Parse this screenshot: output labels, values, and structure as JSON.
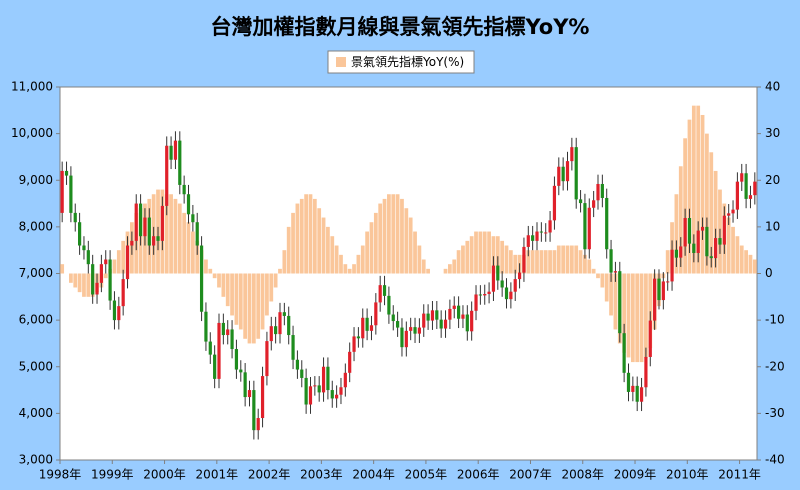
{
  "chart_data": {
    "type": "candlestick",
    "title": "台灣加權指數月線與景氣領先指標YoY%",
    "title_color": "#0000cc",
    "categories": [
      "1998年",
      null,
      null,
      null,
      null,
      null,
      null,
      null,
      null,
      null,
      null,
      null,
      "1999年",
      null,
      null,
      null,
      null,
      null,
      null,
      null,
      null,
      null,
      null,
      null,
      "2000年",
      null,
      null,
      null,
      null,
      null,
      null,
      null,
      null,
      null,
      null,
      null,
      "2001年",
      null,
      null,
      null,
      null,
      null,
      null,
      null,
      null,
      null,
      null,
      null,
      "2002年",
      null,
      null,
      null,
      null,
      null,
      null,
      null,
      null,
      null,
      null,
      null,
      "2003年",
      null,
      null,
      null,
      null,
      null,
      null,
      null,
      null,
      null,
      null,
      null,
      "2004年",
      null,
      null,
      null,
      null,
      null,
      null,
      null,
      null,
      null,
      null,
      null,
      "2005年",
      null,
      null,
      null,
      null,
      null,
      null,
      null,
      null,
      null,
      null,
      null,
      "2006年",
      null,
      null,
      null,
      null,
      null,
      null,
      null,
      null,
      null,
      null,
      null,
      "2007年",
      null,
      null,
      null,
      null,
      null,
      null,
      null,
      null,
      null,
      null,
      null,
      "2008年",
      null,
      null,
      null,
      null,
      null,
      null,
      null,
      null,
      null,
      null,
      null,
      "2009年",
      null,
      null,
      null,
      null,
      null,
      null,
      null,
      null,
      null,
      null,
      null,
      "2010年",
      null,
      null,
      null,
      null,
      null,
      null,
      null,
      null,
      null,
      null,
      null,
      "2011年",
      null,
      null,
      null
    ],
    "series": [
      {
        "type": "candlestick",
        "up_color": "#e0202a",
        "down_color": "#1e8c1e",
        "open": [
          8300,
          9200,
          9100,
          8300,
          8100,
          7600,
          7500,
          7200,
          6550,
          6800,
          7200,
          7300,
          6420,
          6000,
          6300,
          6880,
          7600,
          7700,
          8500,
          7800,
          8200,
          7600,
          7800,
          7700,
          8450,
          9740,
          9440,
          9850,
          8900,
          8700,
          8270,
          8100,
          7600,
          6180,
          5540,
          5260,
          4740,
          5940,
          5680,
          5800,
          5380,
          4940,
          4880,
          4350,
          4500,
          3640,
          3900,
          4800,
          5550,
          5870,
          5700,
          6170,
          6090,
          5680,
          5150,
          4940,
          4760,
          4190,
          4580,
          4600,
          4450,
          5000,
          4500,
          4320,
          4400,
          4560,
          4870,
          5320,
          5650,
          5610,
          6050,
          5770,
          5890,
          6380,
          6750,
          6520,
          6120,
          5980,
          5840,
          5420,
          5770,
          5850,
          5710,
          5840,
          6140,
          5990,
          6210,
          6010,
          5820,
          6010,
          6240,
          6310,
          6030,
          6120,
          5760,
          6200,
          6550,
          6530,
          6560,
          6610,
          7170,
          6850,
          6700,
          6450,
          6610,
          6880,
          7020,
          7570,
          7820,
          7700,
          7900,
          7880,
          7880,
          8140,
          8880,
          9290,
          8980,
          9410,
          9710,
          8590,
          8510,
          7520,
          8410,
          8570,
          8920,
          8620,
          7520,
          7020,
          7050,
          5720,
          4870,
          4460,
          4590,
          4250,
          4560,
          5210,
          5990,
          6890,
          6430,
          6830,
          6830,
          7510,
          7340,
          7580,
          8190,
          7640,
          7440,
          7920,
          8000,
          7370,
          7330,
          7760,
          7620,
          8240,
          8290,
          8370,
          8970,
          9150,
          8600,
          8680
        ],
        "high": [
          9400,
          9400,
          9300,
          8500,
          8300,
          7800,
          7700,
          7400,
          7000,
          7400,
          7500,
          7500,
          6620,
          6500,
          7080,
          7800,
          7900,
          8700,
          8700,
          8400,
          8400,
          8000,
          8000,
          8650,
          9940,
          9940,
          10050,
          10050,
          9100,
          8900,
          8470,
          8300,
          7800,
          6380,
          5740,
          5460,
          6140,
          6140,
          6000,
          6000,
          5580,
          5140,
          5080,
          4700,
          4700,
          4100,
          5000,
          5750,
          6070,
          6070,
          6370,
          6370,
          6290,
          5880,
          5350,
          5140,
          4960,
          4780,
          4800,
          4800,
          5200,
          5200,
          4700,
          4600,
          4760,
          5070,
          5520,
          5850,
          5850,
          6250,
          6250,
          6090,
          6580,
          6950,
          6950,
          6720,
          6320,
          6180,
          6040,
          5970,
          6050,
          6050,
          6040,
          6340,
          6340,
          6410,
          6410,
          6210,
          6210,
          6440,
          6510,
          6510,
          6320,
          6320,
          6400,
          6750,
          6750,
          6760,
          6810,
          7370,
          7370,
          7050,
          6900,
          6810,
          7080,
          7220,
          7770,
          8020,
          8020,
          8100,
          8100,
          8080,
          8340,
          9080,
          9490,
          9490,
          9610,
          9910,
          9910,
          8790,
          8710,
          8610,
          8770,
          9120,
          9120,
          8820,
          7720,
          7250,
          7250,
          5920,
          5070,
          4790,
          4790,
          4760,
          5410,
          6190,
          7090,
          7090,
          7030,
          7030,
          7710,
          7710,
          7780,
          8390,
          8390,
          7840,
          8120,
          8200,
          8200,
          7570,
          7960,
          7960,
          8440,
          8490,
          8570,
          9170,
          9350,
          9350,
          8880,
          9170
        ],
        "low": [
          8100,
          8900,
          8100,
          7900,
          7400,
          7300,
          7000,
          6350,
          6350,
          6600,
          7000,
          6220,
          5800,
          5800,
          6100,
          6680,
          7400,
          7500,
          7600,
          7600,
          7400,
          7400,
          7500,
          7500,
          8250,
          9240,
          9240,
          8700,
          8500,
          8070,
          7900,
          7400,
          5980,
          5340,
          5060,
          4540,
          4540,
          5480,
          5480,
          5180,
          4740,
          4680,
          4150,
          4150,
          3440,
          3440,
          3700,
          4600,
          5350,
          5500,
          5500,
          5890,
          5480,
          4950,
          4740,
          4560,
          3990,
          3990,
          4380,
          4250,
          4250,
          4300,
          4120,
          4120,
          4200,
          4360,
          4670,
          5120,
          5410,
          5410,
          5570,
          5570,
          5690,
          6180,
          6320,
          5920,
          5780,
          5640,
          5220,
          5220,
          5570,
          5510,
          5510,
          5640,
          5790,
          5790,
          5810,
          5620,
          5620,
          5810,
          6040,
          5830,
          5830,
          5560,
          5560,
          6000,
          6330,
          6330,
          6360,
          6410,
          6650,
          6500,
          6250,
          6250,
          6410,
          6680,
          6820,
          7370,
          7500,
          7500,
          7680,
          7680,
          7680,
          7940,
          8680,
          8780,
          8780,
          9210,
          8390,
          8310,
          7320,
          7320,
          8210,
          8370,
          8420,
          7320,
          6820,
          6820,
          5520,
          4670,
          4260,
          4260,
          4050,
          4050,
          4360,
          5010,
          5790,
          6230,
          6230,
          6630,
          6630,
          7140,
          7140,
          7380,
          7440,
          7240,
          7240,
          7720,
          7170,
          7130,
          7130,
          7420,
          7420,
          8040,
          8090,
          8170,
          8770,
          8400,
          8400,
          8480
        ],
        "close": [
          9200,
          9100,
          8300,
          8100,
          7600,
          7500,
          7200,
          6550,
          6800,
          7200,
          7300,
          6420,
          6000,
          6300,
          6880,
          7600,
          7700,
          8500,
          7800,
          8200,
          7600,
          7800,
          7700,
          8450,
          9740,
          9440,
          9850,
          8900,
          8700,
          8270,
          8100,
          7600,
          6180,
          5540,
          5260,
          4740,
          5940,
          5680,
          5800,
          5380,
          4940,
          4880,
          4350,
          4500,
          3640,
          3900,
          4800,
          5550,
          5870,
          5700,
          6170,
          6090,
          5680,
          5150,
          4940,
          4760,
          4190,
          4580,
          4600,
          4450,
          5000,
          4500,
          4320,
          4400,
          4560,
          4870,
          5320,
          5650,
          5610,
          6050,
          5770,
          5890,
          6380,
          6750,
          6520,
          6120,
          5980,
          5840,
          5420,
          5770,
          5850,
          5710,
          5840,
          6140,
          5990,
          6210,
          6010,
          5820,
          6010,
          6240,
          6310,
          6030,
          6120,
          5760,
          6200,
          6550,
          6530,
          6560,
          6610,
          7170,
          6850,
          6700,
          6450,
          6610,
          6880,
          7020,
          7570,
          7820,
          7700,
          7900,
          7880,
          7880,
          8140,
          8880,
          9290,
          8980,
          9410,
          9710,
          8590,
          8510,
          7520,
          8410,
          8570,
          8920,
          8620,
          7520,
          7020,
          7050,
          5720,
          4870,
          4460,
          4590,
          4250,
          4560,
          5210,
          5990,
          6890,
          6430,
          6830,
          6830,
          7510,
          7340,
          7580,
          8190,
          7640,
          7440,
          7920,
          8000,
          7370,
          7330,
          7760,
          7620,
          8240,
          8290,
          8370,
          8970,
          9150,
          8600,
          8680,
          8970
        ]
      },
      {
        "type": "bar",
        "name": "景氣領先指標YoY(%)",
        "color": "#fac69a",
        "axis": "y2",
        "values": [
          2,
          0,
          -2,
          -3,
          -4,
          -5,
          -5,
          -5,
          -4,
          -3,
          -1,
          1,
          3,
          5,
          7,
          9,
          11,
          13,
          14,
          15,
          16,
          17,
          18,
          18,
          17,
          17,
          16,
          15,
          13,
          11,
          9,
          7,
          5,
          3,
          1,
          -1,
          -3,
          -5,
          -7,
          -9,
          -11,
          -12,
          -14,
          -15,
          -15,
          -14,
          -12,
          -9,
          -6,
          -3,
          1,
          5,
          10,
          13,
          15,
          16,
          17,
          17,
          16,
          14,
          12,
          10,
          8,
          6,
          4,
          2,
          1,
          2,
          4,
          6,
          9,
          11,
          13,
          15,
          16,
          17,
          17,
          17,
          16,
          14,
          12,
          9,
          6,
          3,
          1,
          0,
          0,
          0,
          1,
          2,
          3,
          5,
          6,
          7,
          8,
          9,
          9,
          9,
          9,
          8,
          8,
          7,
          6,
          5,
          4,
          4,
          4,
          5,
          5,
          5,
          5,
          5,
          5,
          5,
          6,
          6,
          6,
          6,
          6,
          5,
          4,
          3,
          1,
          -1,
          -3,
          -6,
          -9,
          -12,
          -15,
          -17,
          -18,
          -19,
          -19,
          -19,
          -18,
          -16,
          -12,
          -7,
          -1,
          5,
          11,
          17,
          23,
          29,
          33,
          36,
          36,
          34,
          30,
          26,
          22,
          18,
          15,
          12,
          10,
          8,
          6,
          5,
          4,
          3
        ]
      }
    ],
    "ylim": [
      3000,
      11000
    ],
    "yticks": [
      {
        "value": 3000,
        "label": "3,000"
      },
      {
        "value": 4000,
        "label": "4,000"
      },
      {
        "value": 5000,
        "label": "5,000"
      },
      {
        "value": 6000,
        "label": "6,000"
      },
      {
        "value": 7000,
        "label": "7,000"
      },
      {
        "value": 8000,
        "label": "8,000"
      },
      {
        "value": 9000,
        "label": "9,000"
      },
      {
        "value": 10000,
        "label": "10,000"
      },
      {
        "value": 11000,
        "label": "11,000"
      }
    ],
    "y2lim": [
      -40,
      40
    ],
    "y2ticks": [
      -40,
      -30,
      -20,
      -10,
      0,
      10,
      20,
      30,
      40
    ],
    "y2_negative_tick_color": "#ff0000",
    "legend": "top"
  }
}
